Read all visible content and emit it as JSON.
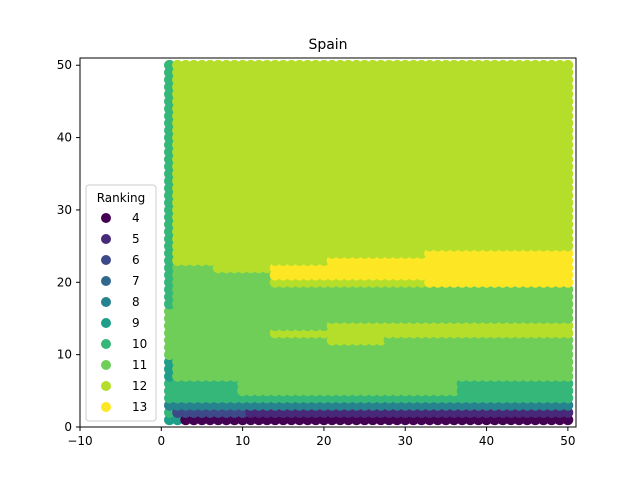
{
  "chart_data": {
    "type": "scatter",
    "title": "Spain",
    "xlabel": "",
    "ylabel": "",
    "xlim": [
      -10,
      51
    ],
    "ylim": [
      0,
      51
    ],
    "xticks": [
      -10,
      0,
      10,
      20,
      30,
      40,
      50
    ],
    "yticks": [
      0,
      10,
      20,
      30,
      40,
      50
    ],
    "grid": false,
    "legend": {
      "title": "Ranking",
      "placement": "center-left",
      "entries": [
        {
          "label": "4",
          "value": 4,
          "color": "#440154"
        },
        {
          "label": "5",
          "value": 5,
          "color": "#482878"
        },
        {
          "label": "6",
          "value": 6,
          "color": "#3e4989"
        },
        {
          "label": "7",
          "value": 7,
          "color": "#31688e"
        },
        {
          "label": "8",
          "value": 8,
          "color": "#26828e"
        },
        {
          "label": "9",
          "value": 9,
          "color": "#1f9e89"
        },
        {
          "label": "10",
          "value": 10,
          "color": "#35b779"
        },
        {
          "label": "11",
          "value": 11,
          "color": "#6ece58"
        },
        {
          "label": "12",
          "value": 12,
          "color": "#b5de2b"
        },
        {
          "label": "13",
          "value": 13,
          "color": "#fde725"
        }
      ]
    },
    "grid_points": {
      "x_range": [
        1,
        50
      ],
      "y_range": [
        1,
        50
      ],
      "value_name": "Ranking",
      "regions": [
        {
          "x": [
            1,
            50
          ],
          "y": [
            1,
            50
          ],
          "value": 12
        },
        {
          "x": [
            1,
            1
          ],
          "y": [
            1,
            50
          ],
          "value": 10
        },
        {
          "x": [
            2,
            6
          ],
          "y": [
            17,
            22
          ],
          "value": 11
        },
        {
          "x": [
            7,
            13
          ],
          "y": [
            17,
            21
          ],
          "value": 11
        },
        {
          "x": [
            1,
            50
          ],
          "y": [
            10,
            16
          ],
          "value": 11
        },
        {
          "x": [
            14,
            20
          ],
          "y": [
            21,
            22
          ],
          "value": 13
        },
        {
          "x": [
            21,
            32
          ],
          "y": [
            21,
            23
          ],
          "value": 13
        },
        {
          "x": [
            33,
            50
          ],
          "y": [
            19,
            24
          ],
          "value": 13
        },
        {
          "x": [
            21,
            50
          ],
          "y": [
            17,
            19
          ],
          "value": 11
        },
        {
          "x": [
            14,
            20
          ],
          "y": [
            14,
            19
          ],
          "value": 11
        },
        {
          "x": [
            14,
            20
          ],
          "y": [
            13,
            13
          ],
          "value": 12
        },
        {
          "x": [
            21,
            50
          ],
          "y": [
            13,
            14
          ],
          "value": 12
        },
        {
          "x": [
            21,
            27
          ],
          "y": [
            12,
            12
          ],
          "value": 12
        },
        {
          "x": [
            2,
            50
          ],
          "y": [
            7,
            9
          ],
          "value": 11
        },
        {
          "x": [
            1,
            1
          ],
          "y": [
            7,
            9
          ],
          "value": 9
        },
        {
          "x": [
            2,
            50
          ],
          "y": [
            4,
            6
          ],
          "value": 10
        },
        {
          "x": [
            10,
            36
          ],
          "y": [
            5,
            6
          ],
          "value": 11
        },
        {
          "x": [
            37,
            50
          ],
          "y": [
            5,
            6
          ],
          "value": 10
        },
        {
          "x": [
            1,
            50
          ],
          "y": [
            3,
            3
          ],
          "value": 8
        },
        {
          "x": [
            2,
            50
          ],
          "y": [
            2,
            2
          ],
          "value": 5
        },
        {
          "x": [
            2,
            10
          ],
          "y": [
            2,
            2
          ],
          "value": 6
        },
        {
          "x": [
            3,
            50
          ],
          "y": [
            1,
            1
          ],
          "value": 4
        },
        {
          "x": [
            1,
            2
          ],
          "y": [
            1,
            1
          ],
          "value": 9
        }
      ]
    }
  }
}
